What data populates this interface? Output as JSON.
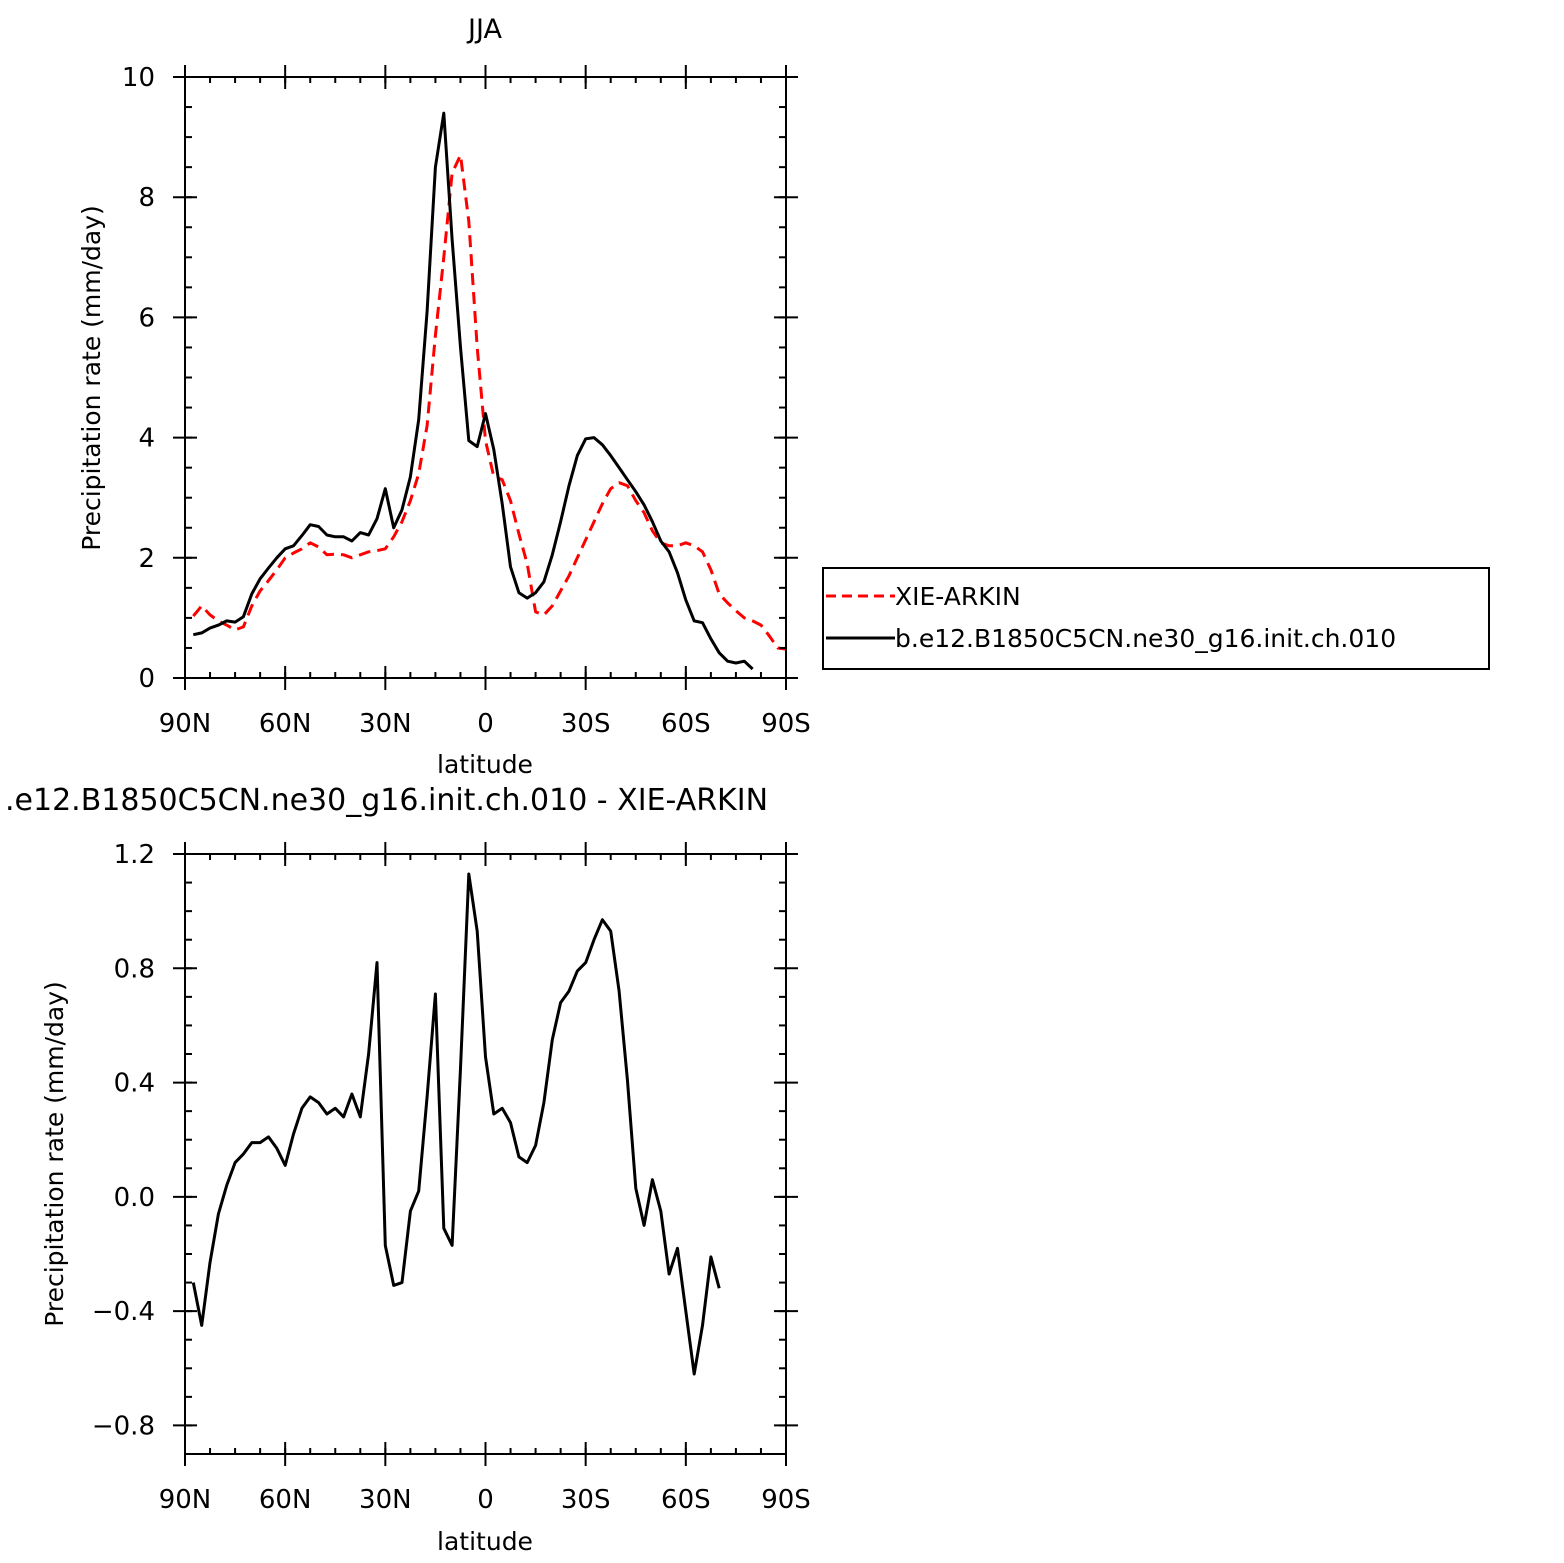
{
  "chart_data": [
    {
      "type": "line",
      "title": "JJA",
      "xlabel": "latitude",
      "ylabel": "Precipitation rate (mm/day)",
      "xlim": [
        -90,
        90
      ],
      "ylim": [
        0,
        10
      ],
      "x_ticks": [
        {
          "value": -90,
          "label": "90N"
        },
        {
          "value": -60,
          "label": "60N"
        },
        {
          "value": -30,
          "label": "30N"
        },
        {
          "value": 0,
          "label": "0"
        },
        {
          "value": 30,
          "label": "30S"
        },
        {
          "value": 60,
          "label": "60S"
        },
        {
          "value": 90,
          "label": "90S"
        }
      ],
      "y_ticks": [
        {
          "value": 0,
          "label": "0"
        },
        {
          "value": 2,
          "label": "2"
        },
        {
          "value": 4,
          "label": "4"
        },
        {
          "value": 6,
          "label": "6"
        },
        {
          "value": 8,
          "label": "8"
        },
        {
          "value": 10,
          "label": "10"
        }
      ],
      "legend_position": "right",
      "series": [
        {
          "name": "XIE-ARKIN",
          "color": "#ff0000",
          "dash": "dashed",
          "points": [
            [
              -87.5,
              1.03
            ],
            [
              -85,
              1.2
            ],
            [
              -82.5,
              1.05
            ],
            [
              -80,
              0.95
            ],
            [
              -77.5,
              0.88
            ],
            [
              -75,
              0.8
            ],
            [
              -72.5,
              0.85
            ],
            [
              -70,
              1.2
            ],
            [
              -67.5,
              1.45
            ],
            [
              -65,
              1.62
            ],
            [
              -62.5,
              1.8
            ],
            [
              -60,
              2.0
            ],
            [
              -57.5,
              2.08
            ],
            [
              -55,
              2.15
            ],
            [
              -52.5,
              2.25
            ],
            [
              -50,
              2.18
            ],
            [
              -47.5,
              2.05
            ],
            [
              -45,
              2.06
            ],
            [
              -42.5,
              2.05
            ],
            [
              -40,
              2.0
            ],
            [
              -37.5,
              2.05
            ],
            [
              -35,
              2.1
            ],
            [
              -32.5,
              2.12
            ],
            [
              -30,
              2.15
            ],
            [
              -27.5,
              2.35
            ],
            [
              -25,
              2.6
            ],
            [
              -22.5,
              2.95
            ],
            [
              -20,
              3.4
            ],
            [
              -17.5,
              4.2
            ],
            [
              -15,
              5.7
            ],
            [
              -12.5,
              7.0
            ],
            [
              -10,
              8.4
            ],
            [
              -7.5,
              8.7
            ],
            [
              -5,
              7.6
            ],
            [
              -2.5,
              5.5
            ],
            [
              0,
              3.95
            ],
            [
              2.5,
              3.35
            ],
            [
              5,
              3.3
            ],
            [
              7.5,
              2.95
            ],
            [
              10,
              2.4
            ],
            [
              12.5,
              1.9
            ],
            [
              15,
              1.1
            ],
            [
              17.5,
              1.05
            ],
            [
              20,
              1.2
            ],
            [
              22.5,
              1.45
            ],
            [
              25,
              1.7
            ],
            [
              27.5,
              2.0
            ],
            [
              30,
              2.3
            ],
            [
              32.5,
              2.6
            ],
            [
              35,
              2.9
            ],
            [
              37.5,
              3.15
            ],
            [
              40,
              3.25
            ],
            [
              42.5,
              3.2
            ],
            [
              45,
              2.95
            ],
            [
              47.5,
              2.75
            ],
            [
              50,
              2.45
            ],
            [
              52.5,
              2.25
            ],
            [
              55,
              2.2
            ],
            [
              57.5,
              2.2
            ],
            [
              60,
              2.25
            ],
            [
              62.5,
              2.2
            ],
            [
              65,
              2.1
            ],
            [
              67.5,
              1.8
            ],
            [
              70,
              1.4
            ],
            [
              72.5,
              1.25
            ],
            [
              75,
              1.12
            ],
            [
              77.5,
              1.0
            ],
            [
              80,
              0.95
            ],
            [
              82.5,
              0.88
            ],
            [
              85,
              0.7
            ],
            [
              87.5,
              0.5
            ],
            [
              90,
              0.48
            ]
          ]
        },
        {
          "name": "b.e12.B1850C5CN.ne30_g16.init.ch.010",
          "color": "#000000",
          "dash": "solid",
          "points": [
            [
              -87.5,
              0.72
            ],
            [
              -85,
              0.75
            ],
            [
              -82.5,
              0.83
            ],
            [
              -80,
              0.88
            ],
            [
              -77.5,
              0.95
            ],
            [
              -75,
              0.93
            ],
            [
              -72.5,
              1.02
            ],
            [
              -70,
              1.4
            ],
            [
              -67.5,
              1.65
            ],
            [
              -65,
              1.83
            ],
            [
              -62.5,
              2.0
            ],
            [
              -60,
              2.15
            ],
            [
              -57.5,
              2.2
            ],
            [
              -55,
              2.37
            ],
            [
              -52.5,
              2.55
            ],
            [
              -50,
              2.52
            ],
            [
              -47.5,
              2.38
            ],
            [
              -45,
              2.35
            ],
            [
              -42.5,
              2.35
            ],
            [
              -40,
              2.28
            ],
            [
              -37.5,
              2.42
            ],
            [
              -35,
              2.38
            ],
            [
              -32.5,
              2.65
            ],
            [
              -30,
              3.15
            ],
            [
              -27.5,
              2.5
            ],
            [
              -25,
              2.8
            ],
            [
              -22.5,
              3.35
            ],
            [
              -20,
              4.3
            ],
            [
              -17.5,
              6.1
            ],
            [
              -15,
              8.5
            ],
            [
              -12.5,
              9.4
            ],
            [
              -10,
              7.3
            ],
            [
              -7.5,
              5.5
            ],
            [
              -5,
              3.95
            ],
            [
              -2.5,
              3.85
            ],
            [
              0,
              4.4
            ],
            [
              2.5,
              3.8
            ],
            [
              5,
              2.9
            ],
            [
              7.5,
              1.85
            ],
            [
              10,
              1.42
            ],
            [
              12.5,
              1.33
            ],
            [
              15,
              1.42
            ],
            [
              17.5,
              1.6
            ],
            [
              20,
              2.05
            ],
            [
              22.5,
              2.6
            ],
            [
              25,
              3.2
            ],
            [
              27.5,
              3.7
            ],
            [
              30,
              3.98
            ],
            [
              32.5,
              4.0
            ],
            [
              35,
              3.88
            ],
            [
              37.5,
              3.7
            ],
            [
              40,
              3.5
            ],
            [
              42.5,
              3.3
            ],
            [
              45,
              3.1
            ],
            [
              47.5,
              2.88
            ],
            [
              50,
              2.6
            ],
            [
              52.5,
              2.28
            ],
            [
              55,
              2.1
            ],
            [
              57.5,
              1.75
            ],
            [
              60,
              1.3
            ],
            [
              62.5,
              0.95
            ],
            [
              65,
              0.92
            ],
            [
              67.5,
              0.65
            ],
            [
              70,
              0.42
            ],
            [
              72.5,
              0.28
            ],
            [
              75,
              0.25
            ],
            [
              77.5,
              0.28
            ],
            [
              80,
              0.15
            ]
          ]
        }
      ]
    },
    {
      "type": "line",
      "title": ".e12.B1850C5CN.ne30_g16.init.ch.010 - XIE-ARKIN",
      "xlabel": "latitude",
      "ylabel": "Precipitation rate (mm/day)",
      "xlim": [
        -90,
        90
      ],
      "ylim": [
        -0.9,
        1.2
      ],
      "x_ticks": [
        {
          "value": -90,
          "label": "90N"
        },
        {
          "value": -60,
          "label": "60N"
        },
        {
          "value": -30,
          "label": "30N"
        },
        {
          "value": 0,
          "label": "0"
        },
        {
          "value": 30,
          "label": "30S"
        },
        {
          "value": 60,
          "label": "60S"
        },
        {
          "value": 90,
          "label": "90S"
        }
      ],
      "y_ticks": [
        {
          "value": -0.8,
          "label": "−0.8"
        },
        {
          "value": -0.4,
          "label": "−0.4"
        },
        {
          "value": 0.0,
          "label": "0.0"
        },
        {
          "value": 0.4,
          "label": "0.4"
        },
        {
          "value": 0.8,
          "label": "0.8"
        },
        {
          "value": 1.2,
          "label": "1.2"
        }
      ],
      "series": [
        {
          "color": "#000000",
          "dash": "solid",
          "points": [
            [
              -87.5,
              -0.3
            ],
            [
              -85,
              -0.45
            ],
            [
              -82.5,
              -0.23
            ],
            [
              -80,
              -0.06
            ],
            [
              -77.5,
              0.04
            ],
            [
              -75,
              0.12
            ],
            [
              -72.5,
              0.15
            ],
            [
              -70,
              0.19
            ],
            [
              -67.5,
              0.19
            ],
            [
              -65,
              0.21
            ],
            [
              -62.5,
              0.17
            ],
            [
              -60,
              0.11
            ],
            [
              -57.5,
              0.22
            ],
            [
              -55,
              0.31
            ],
            [
              -52.5,
              0.35
            ],
            [
              -50,
              0.33
            ],
            [
              -47.5,
              0.29
            ],
            [
              -45,
              0.31
            ],
            [
              -42.5,
              0.28
            ],
            [
              -40,
              0.36
            ],
            [
              -37.5,
              0.28
            ],
            [
              -35,
              0.5
            ],
            [
              -32.5,
              0.82
            ],
            [
              -30,
              -0.17
            ],
            [
              -27.5,
              -0.31
            ],
            [
              -25,
              -0.3
            ],
            [
              -22.5,
              -0.05
            ],
            [
              -20,
              0.02
            ],
            [
              -17.5,
              0.35
            ],
            [
              -15,
              0.71
            ],
            [
              -12.5,
              -0.11
            ],
            [
              -10,
              -0.17
            ],
            [
              -7.5,
              0.45
            ],
            [
              -5,
              1.13
            ],
            [
              -2.5,
              0.93
            ],
            [
              0,
              0.49
            ],
            [
              2.5,
              0.29
            ],
            [
              5,
              0.31
            ],
            [
              7.5,
              0.26
            ],
            [
              10,
              0.14
            ],
            [
              12.5,
              0.12
            ],
            [
              15,
              0.18
            ],
            [
              17.5,
              0.33
            ],
            [
              20,
              0.55
            ],
            [
              22.5,
              0.68
            ],
            [
              25,
              0.72
            ],
            [
              27.5,
              0.79
            ],
            [
              30,
              0.82
            ],
            [
              32.5,
              0.9
            ],
            [
              35,
              0.97
            ],
            [
              37.5,
              0.93
            ],
            [
              40,
              0.72
            ],
            [
              42.5,
              0.41
            ],
            [
              45,
              0.03
            ],
            [
              47.5,
              -0.1
            ],
            [
              50,
              0.06
            ],
            [
              52.5,
              -0.05
            ],
            [
              55,
              -0.27
            ],
            [
              57.5,
              -0.18
            ],
            [
              60,
              -0.4
            ],
            [
              62.5,
              -0.62
            ],
            [
              65,
              -0.45
            ],
            [
              67.5,
              -0.21
            ],
            [
              70,
              -0.32
            ]
          ]
        }
      ]
    }
  ]
}
